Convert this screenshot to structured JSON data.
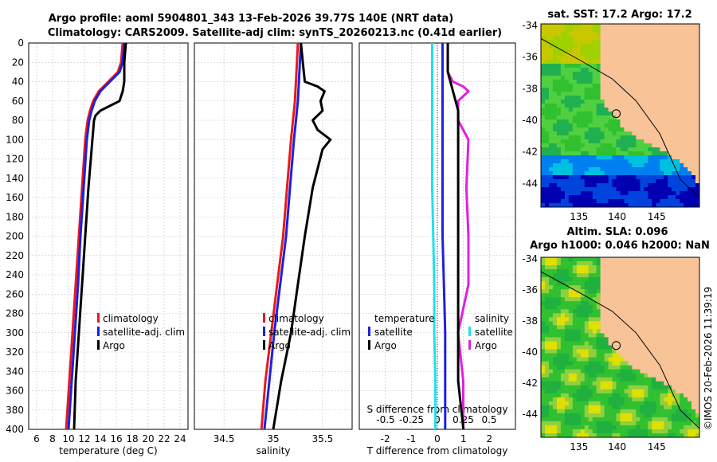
{
  "titles": {
    "line1": "Argo profile: aoml 5904801_343 13-Feb-2026 39.77S 140E (NRT data)",
    "line2": "Climatology: CARS2009. Satellite-adj clim: synTS_20260213.nc (0.41d earlier)",
    "map_sst": "sat. SST: 17.2 Argo: 17.2",
    "map_sla1": "Altim. SLA: 0.096",
    "map_sla2": "Argo h1000: 0.046 h2000: NaN",
    "footer": "©IMOS 20-Feb-2026 11:39:19"
  },
  "colors": {
    "clim": "#e8191b",
    "sat": "#1f1fe0",
    "argo": "#000000",
    "sal_clim": "#e020e0",
    "sal_sat": "#20e0f0",
    "land": "#f9c398"
  },
  "chart_data": [
    {
      "type": "line",
      "name": "temperature",
      "xlabel": "temperature (deg C)",
      "xlim": [
        5,
        25
      ],
      "ylim": [
        400,
        0
      ],
      "xticks": [
        "6",
        "8",
        "10",
        "12",
        "14",
        "16",
        "18",
        "20",
        "22",
        "24"
      ],
      "yticks": [
        "0",
        "20",
        "40",
        "60",
        "80",
        "100",
        "120",
        "140",
        "160",
        "180",
        "200",
        "220",
        "240",
        "260",
        "280",
        "300",
        "320",
        "340",
        "360",
        "380",
        "400"
      ],
      "legend": [
        "climatology",
        "satellite-adj. clim",
        "Argo"
      ],
      "series": [
        {
          "name": "climatology",
          "depth": [
            0,
            20,
            30,
            40,
            50,
            60,
            70,
            80,
            100,
            150,
            200,
            250,
            300,
            350,
            400
          ],
          "values": [
            16.8,
            16.6,
            16.2,
            15.0,
            13.8,
            13.1,
            12.7,
            12.4,
            12.1,
            11.7,
            11.3,
            10.9,
            10.5,
            10.1,
            9.7
          ]
        },
        {
          "name": "satellite-adj. clim",
          "depth": [
            0,
            20,
            30,
            40,
            50,
            60,
            70,
            80,
            100,
            150,
            200,
            250,
            300,
            350,
            400
          ],
          "values": [
            17.0,
            16.8,
            16.4,
            15.2,
            14.0,
            13.3,
            12.9,
            12.6,
            12.3,
            11.9,
            11.5,
            11.2,
            10.8,
            10.4,
            10.0
          ]
        },
        {
          "name": "Argo",
          "depth": [
            0,
            20,
            30,
            40,
            50,
            60,
            70,
            75,
            80,
            100,
            150,
            200,
            250,
            300,
            350,
            400
          ],
          "values": [
            17.2,
            17.0,
            17.0,
            17.0,
            16.8,
            16.4,
            14.0,
            13.4,
            13.2,
            13.0,
            12.5,
            12.1,
            11.7,
            11.3,
            10.9,
            10.7
          ]
        }
      ]
    },
    {
      "type": "line",
      "name": "salinity",
      "xlabel": "salinity",
      "xlim": [
        34.2,
        35.8
      ],
      "ylim": [
        400,
        0
      ],
      "xticks": [
        "34.5",
        "35",
        "35.5"
      ],
      "legend": [
        "climatology",
        "satellite-adj. clim",
        "Argo"
      ],
      "series": [
        {
          "name": "climatology",
          "depth": [
            0,
            20,
            40,
            60,
            80,
            100,
            150,
            200,
            250,
            300,
            350,
            400
          ],
          "values": [
            35.25,
            35.24,
            35.23,
            35.22,
            35.2,
            35.18,
            35.14,
            35.1,
            35.04,
            34.98,
            34.92,
            34.88
          ]
        },
        {
          "name": "satellite-adj. clim",
          "depth": [
            0,
            20,
            40,
            60,
            80,
            100,
            150,
            200,
            250,
            300,
            350,
            400
          ],
          "values": [
            35.28,
            35.27,
            35.26,
            35.25,
            35.23,
            35.21,
            35.17,
            35.13,
            35.07,
            35.01,
            34.96,
            34.91
          ]
        },
        {
          "name": "Argo",
          "depth": [
            0,
            20,
            40,
            45,
            50,
            60,
            70,
            80,
            90,
            100,
            110,
            150,
            200,
            250,
            300,
            350,
            400
          ],
          "values": [
            35.28,
            35.3,
            35.32,
            35.45,
            35.52,
            35.48,
            35.5,
            35.4,
            35.45,
            35.58,
            35.5,
            35.4,
            35.32,
            35.25,
            35.18,
            35.08,
            35.0
          ]
        }
      ]
    },
    {
      "type": "line",
      "name": "differences",
      "xlabel": "T difference from climatology",
      "xlabel_top": "S difference from climatology",
      "xlim": [
        -3,
        3
      ],
      "ylim": [
        400,
        0
      ],
      "xticks": [
        "-2",
        "-1",
        "0",
        "1",
        "2"
      ],
      "sticks": [
        "-0.5",
        "-0.25",
        "0",
        "0.25",
        "0.5"
      ],
      "legend_left": [
        "temperature",
        "satellite",
        "Argo"
      ],
      "legend_right": [
        "salinity",
        "satellite",
        "Argo"
      ],
      "series": [
        {
          "name": "T satellite",
          "depth": [
            0,
            50,
            100,
            150,
            200,
            250,
            300,
            350,
            400
          ],
          "values": [
            0.2,
            0.2,
            0.2,
            0.2,
            0.2,
            0.25,
            0.3,
            0.3,
            0.3
          ]
        },
        {
          "name": "T Argo",
          "depth": [
            0,
            30,
            50,
            70,
            80,
            100,
            150,
            200,
            250,
            300,
            350,
            400
          ],
          "values": [
            0.4,
            0.4,
            0.6,
            0.8,
            0.8,
            0.8,
            0.8,
            0.8,
            0.8,
            0.8,
            0.8,
            1.0
          ]
        },
        {
          "name": "S satellite",
          "depth": [
            0,
            50,
            100,
            150,
            200,
            250,
            300,
            350,
            400
          ],
          "values": [
            -0.05,
            -0.05,
            -0.05,
            -0.05,
            -0.04,
            -0.03,
            -0.03,
            -0.02,
            -0.02
          ]
        },
        {
          "name": "S Argo",
          "depth": [
            0,
            30,
            40,
            45,
            50,
            60,
            80,
            100,
            150,
            200,
            250,
            300,
            350,
            400
          ],
          "values": [
            0.1,
            0.1,
            0.15,
            0.25,
            0.3,
            0.2,
            0.2,
            0.3,
            0.28,
            0.3,
            0.3,
            0.2,
            0.25,
            0.25
          ]
        }
      ]
    },
    {
      "type": "heatmap",
      "name": "SST map",
      "xticks": [
        "135",
        "140",
        "145"
      ],
      "yticks": [
        "-34",
        "-36",
        "-38",
        "-40",
        "-42",
        "-44"
      ]
    },
    {
      "type": "heatmap",
      "name": "SLA map",
      "xticks": [
        "135",
        "140",
        "145"
      ],
      "yticks": [
        "-34",
        "-36",
        "-38",
        "-40",
        "-42",
        "-44"
      ]
    }
  ]
}
